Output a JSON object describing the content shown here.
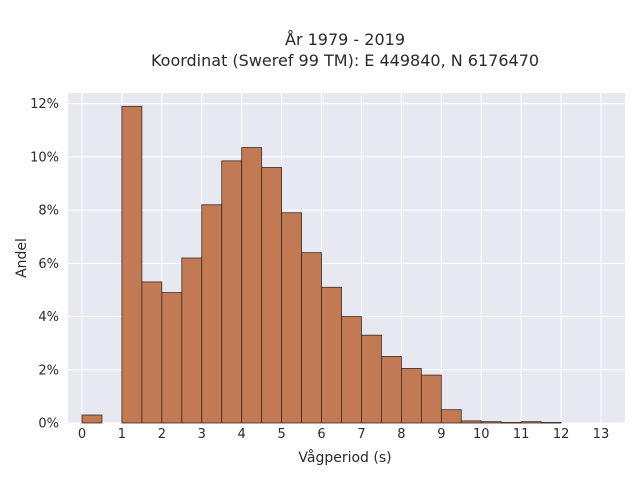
{
  "chart_data": {
    "type": "bar",
    "title_line1": "År 1979 - 2019",
    "title_line2": "Koordinat (Sweref 99 TM): E 449840, N 6176470",
    "xlabel": "Vågperiod (s)",
    "ylabel": "Andel",
    "bin_width": 0.5,
    "bins": [
      {
        "x0": 0.0,
        "value": 0.3
      },
      {
        "x0": 1.0,
        "value": 11.9
      },
      {
        "x0": 1.5,
        "value": 5.3
      },
      {
        "x0": 2.0,
        "value": 4.9
      },
      {
        "x0": 2.5,
        "value": 6.2
      },
      {
        "x0": 3.0,
        "value": 8.2
      },
      {
        "x0": 3.5,
        "value": 9.85
      },
      {
        "x0": 4.0,
        "value": 10.35
      },
      {
        "x0": 4.5,
        "value": 9.6
      },
      {
        "x0": 5.0,
        "value": 7.9
      },
      {
        "x0": 5.5,
        "value": 6.4
      },
      {
        "x0": 6.0,
        "value": 5.1
      },
      {
        "x0": 6.5,
        "value": 4.0
      },
      {
        "x0": 7.0,
        "value": 3.3
      },
      {
        "x0": 7.5,
        "value": 2.5
      },
      {
        "x0": 8.0,
        "value": 2.05
      },
      {
        "x0": 8.5,
        "value": 1.8
      },
      {
        "x0": 9.0,
        "value": 0.5
      },
      {
        "x0": 9.5,
        "value": 0.08
      },
      {
        "x0": 10.0,
        "value": 0.05
      },
      {
        "x0": 10.5,
        "value": 0.02
      },
      {
        "x0": 11.0,
        "value": 0.05
      },
      {
        "x0": 11.5,
        "value": 0.02
      }
    ],
    "xlim": [
      -0.35,
      13.6
    ],
    "ylim": [
      0,
      12.4
    ],
    "x_ticks": [
      0,
      1,
      2,
      3,
      4,
      5,
      6,
      7,
      8,
      9,
      10,
      11,
      12,
      13
    ],
    "y_ticks": [
      0,
      2,
      4,
      6,
      8,
      10,
      12
    ],
    "y_tick_suffix": "%",
    "grid": true,
    "colors": {
      "bar_fill": "#c17a54",
      "bar_stroke": "#3a2a20",
      "plot_background": "#e8e8f1",
      "grid": "#ffffff"
    }
  }
}
